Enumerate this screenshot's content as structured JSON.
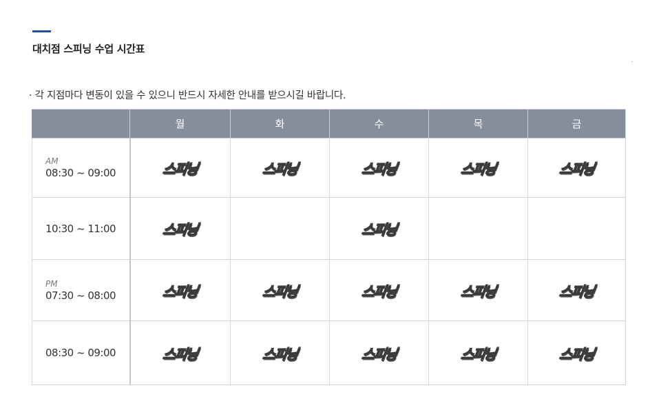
{
  "header": {
    "title": "대치점 스피닝 수업 시간표",
    "notice": "· 각 지점마다 변동이 있을 수 있으니 반드시 자세한 안내를 받으시길 바랍니다."
  },
  "schedule": {
    "days": [
      "월",
      "화",
      "수",
      "목",
      "금"
    ],
    "badge_colors": {
      "fill": "#f1e21b",
      "outline": "#3a3a3a"
    },
    "header_bg": "#858e9a",
    "rows": [
      {
        "period": "AM",
        "time": "08:30 ~ 09:00",
        "cells": [
          "스피닝",
          "스피닝",
          "스피닝",
          "스피닝",
          "스피닝"
        ]
      },
      {
        "period": "",
        "time": "10:30 ~ 11:00",
        "cells": [
          "스피닝",
          "",
          "스피닝",
          "",
          ""
        ]
      },
      {
        "period": "PM",
        "time": "07:30 ~ 08:00",
        "cells": [
          "스피닝",
          "스피닝",
          "스피닝",
          "스피닝",
          "스피닝"
        ]
      },
      {
        "period": "",
        "time": "08:30 ~ 09:00",
        "cells": [
          "스피닝",
          "스피닝",
          "스피닝",
          "스피닝",
          "스피닝"
        ]
      }
    ]
  }
}
